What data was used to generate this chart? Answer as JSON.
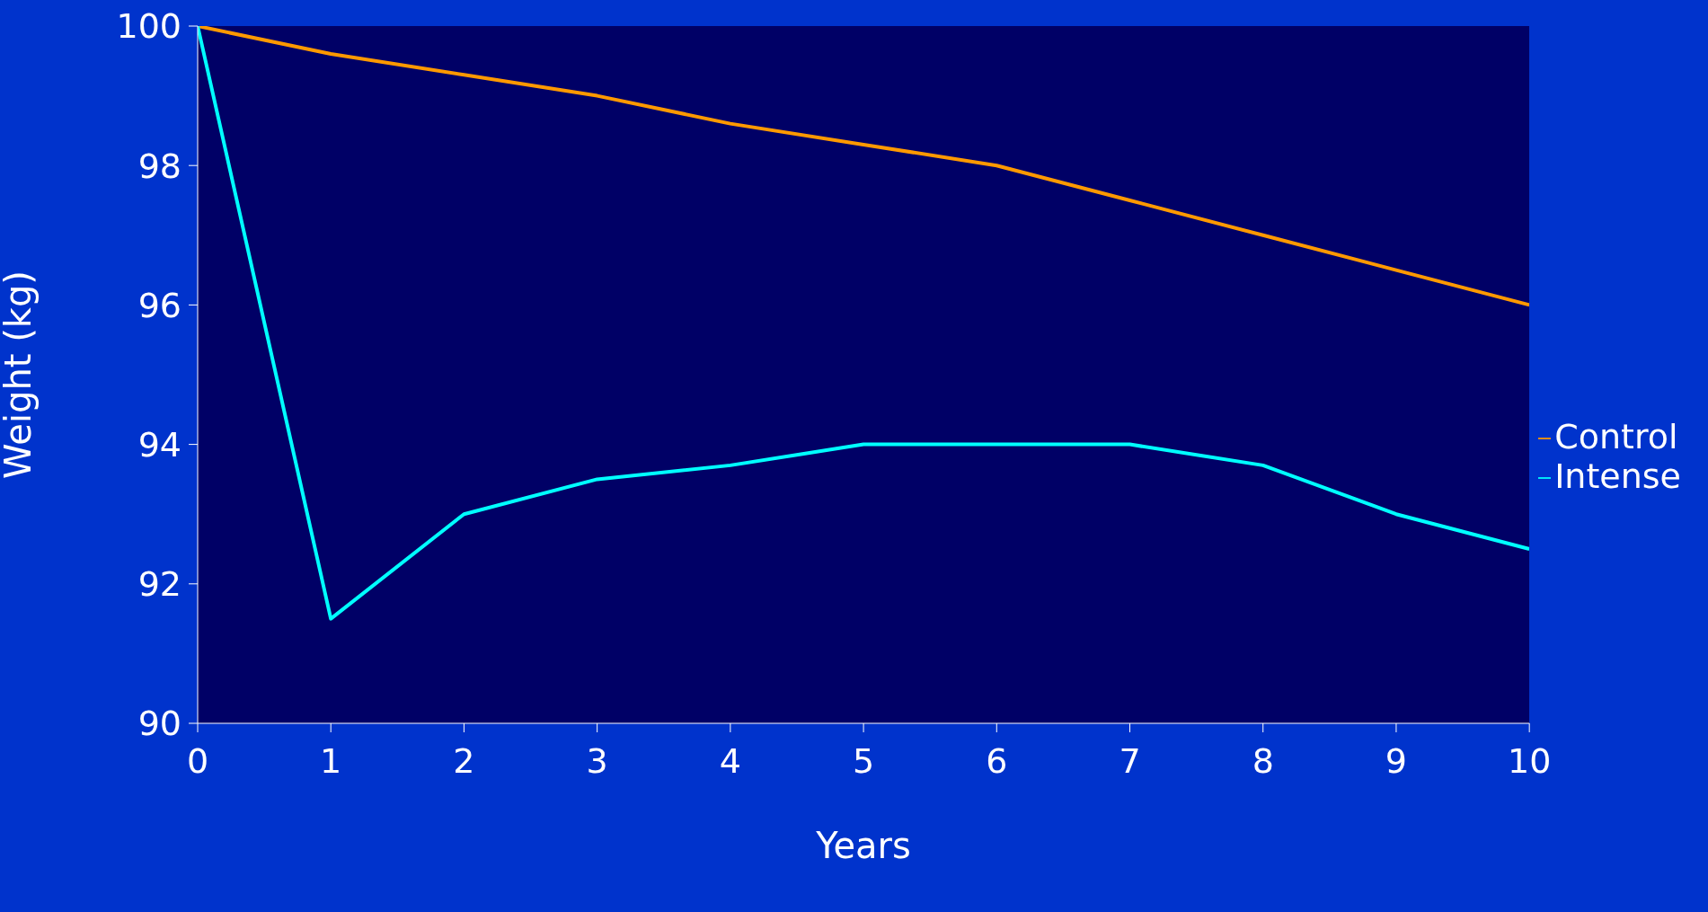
{
  "chart_data": {
    "type": "line",
    "xlabel": "Years",
    "ylabel": "Weight (kg)",
    "x": [
      0,
      1,
      2,
      3,
      4,
      5,
      6,
      7,
      8,
      9,
      10
    ],
    "series": [
      {
        "name": "Control",
        "color": "#ff9900",
        "values": [
          100,
          99.6,
          99.3,
          99.0,
          98.6,
          98.3,
          98.0,
          97.5,
          97.0,
          96.5,
          96.0
        ]
      },
      {
        "name": "Intense",
        "color": "#00ffff",
        "values": [
          100,
          91.5,
          93.0,
          93.5,
          93.7,
          94.0,
          94.0,
          94.0,
          93.7,
          93.0,
          92.5
        ]
      }
    ],
    "xlim": [
      0,
      10
    ],
    "xticks": [
      0,
      1,
      2,
      3,
      4,
      5,
      6,
      7,
      8,
      9,
      10
    ],
    "ylim": [
      90,
      100
    ],
    "yticks": [
      90,
      92,
      94,
      96,
      98,
      100
    ],
    "grid": false,
    "legend": "right",
    "marker": "none",
    "line_style": "solid"
  }
}
